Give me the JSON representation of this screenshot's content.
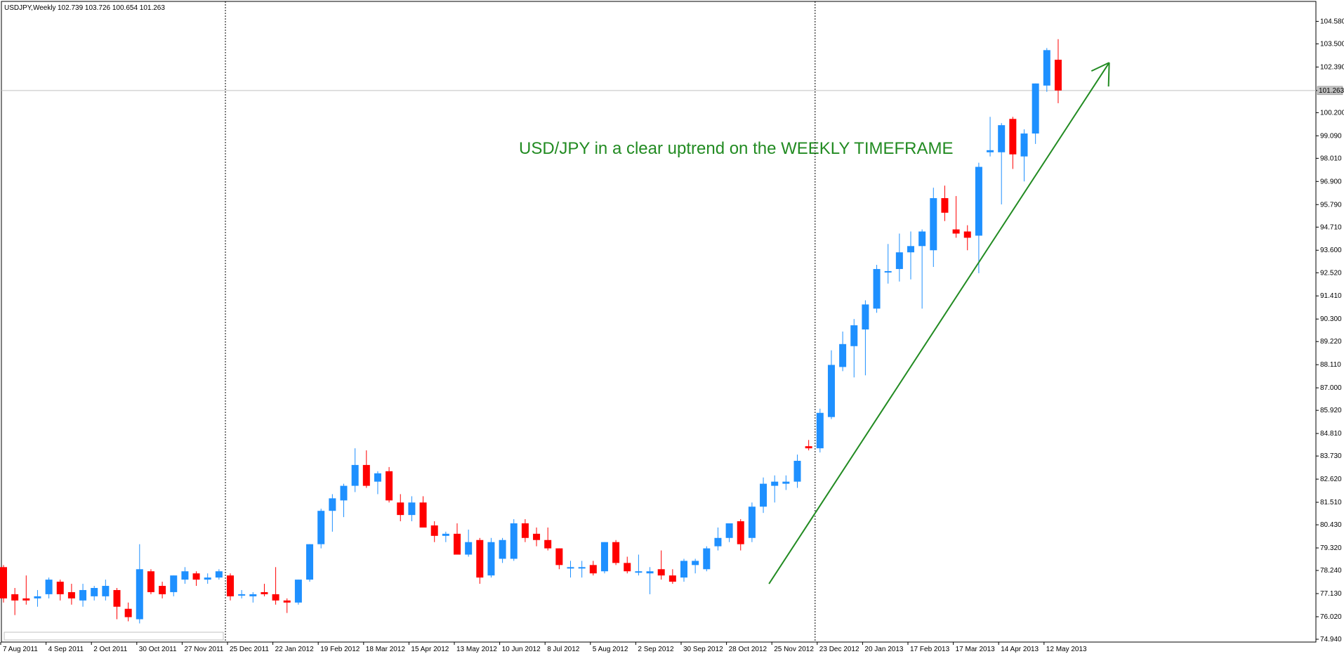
{
  "header": {
    "symbol": "USDJPY,Weekly",
    "ohlc": "102.739 103.726 100.654 101.263"
  },
  "annotation": "USD/JPY in a clear uptrend on the WEEKLY TIMEFRAME",
  "current_price_label": "101.263",
  "colors": {
    "bull": "#1e90ff",
    "bear": "#ff0000",
    "trendline": "#228b22",
    "annotation": "#228b22",
    "axis": "#000000",
    "price_line": "#c0c0c0"
  },
  "chart_data": {
    "type": "candlestick",
    "title": "",
    "xlabel": "",
    "ylabel": "",
    "ylim": [
      74.94,
      105.2
    ],
    "y_ticks": [
      "104.580",
      "103.500",
      "102.390",
      "101.263",
      "100.200",
      "99.090",
      "98.010",
      "96.900",
      "95.790",
      "94.710",
      "93.600",
      "92.520",
      "91.410",
      "90.300",
      "89.220",
      "88.110",
      "87.000",
      "85.920",
      "84.810",
      "83.730",
      "82.620",
      "81.510",
      "80.430",
      "79.320",
      "78.240",
      "77.130",
      "76.020",
      "74.940"
    ],
    "x_ticks": [
      {
        "label": "7 Aug 2011",
        "index": 0
      },
      {
        "label": "4 Sep 2011",
        "index": 4
      },
      {
        "label": "2 Oct 2011",
        "index": 8
      },
      {
        "label": "30 Oct 2011",
        "index": 12
      },
      {
        "label": "27 Nov 2011",
        "index": 16
      },
      {
        "label": "25 Dec 2011",
        "index": 20
      },
      {
        "label": "22 Jan 2012",
        "index": 24
      },
      {
        "label": "19 Feb 2012",
        "index": 28
      },
      {
        "label": "18 Mar 2012",
        "index": 32
      },
      {
        "label": "15 Apr 2012",
        "index": 36
      },
      {
        "label": "13 May 2012",
        "index": 40
      },
      {
        "label": "10 Jun 2012",
        "index": 44
      },
      {
        "label": "8 Jul 2012",
        "index": 48
      },
      {
        "label": "5 Aug 2012",
        "index": 52
      },
      {
        "label": "2 Sep 2012",
        "index": 56
      },
      {
        "label": "30 Sep 2012",
        "index": 60
      },
      {
        "label": "28 Oct 2012",
        "index": 64
      },
      {
        "label": "25 Nov 2012",
        "index": 68
      },
      {
        "label": "23 Dec 2012",
        "index": 72
      },
      {
        "label": "20 Jan 2013",
        "index": 76
      },
      {
        "label": "17 Feb 2013",
        "index": 80
      },
      {
        "label": "17 Mar 2013",
        "index": 84
      },
      {
        "label": "14 Apr 2013",
        "index": 88
      },
      {
        "label": "12 May 2013",
        "index": 92
      }
    ],
    "candles": [
      {
        "o": 78.4,
        "h": 78.5,
        "l": 76.7,
        "c": 76.9
      },
      {
        "o": 77.1,
        "h": 77.4,
        "l": 76.1,
        "c": 76.8
      },
      {
        "o": 76.9,
        "h": 78.0,
        "l": 76.6,
        "c": 76.8
      },
      {
        "o": 76.9,
        "h": 77.3,
        "l": 76.5,
        "c": 77.0
      },
      {
        "o": 77.1,
        "h": 77.9,
        "l": 76.9,
        "c": 77.8
      },
      {
        "o": 77.7,
        "h": 77.8,
        "l": 76.8,
        "c": 77.1
      },
      {
        "o": 77.2,
        "h": 77.6,
        "l": 76.6,
        "c": 76.9
      },
      {
        "o": 76.8,
        "h": 77.6,
        "l": 76.5,
        "c": 77.3
      },
      {
        "o": 77.0,
        "h": 77.5,
        "l": 76.8,
        "c": 77.4
      },
      {
        "o": 77.0,
        "h": 77.8,
        "l": 76.8,
        "c": 77.5
      },
      {
        "o": 77.3,
        "h": 77.4,
        "l": 75.9,
        "c": 76.5
      },
      {
        "o": 76.4,
        "h": 76.7,
        "l": 75.8,
        "c": 76.0
      },
      {
        "o": 75.9,
        "h": 79.5,
        "l": 75.7,
        "c": 78.3
      },
      {
        "o": 78.2,
        "h": 78.3,
        "l": 77.1,
        "c": 77.2
      },
      {
        "o": 77.5,
        "h": 77.7,
        "l": 76.9,
        "c": 77.1
      },
      {
        "o": 77.2,
        "h": 78.0,
        "l": 77.0,
        "c": 78.0
      },
      {
        "o": 77.8,
        "h": 78.4,
        "l": 77.6,
        "c": 78.2
      },
      {
        "o": 78.1,
        "h": 78.2,
        "l": 77.5,
        "c": 77.8
      },
      {
        "o": 77.8,
        "h": 78.1,
        "l": 77.6,
        "c": 77.9
      },
      {
        "o": 77.9,
        "h": 78.3,
        "l": 77.8,
        "c": 78.2
      },
      {
        "o": 78.0,
        "h": 78.1,
        "l": 76.8,
        "c": 77.0
      },
      {
        "o": 77.1,
        "h": 77.3,
        "l": 76.9,
        "c": 77.1
      },
      {
        "o": 77.0,
        "h": 77.2,
        "l": 76.7,
        "c": 77.1
      },
      {
        "o": 77.2,
        "h": 77.6,
        "l": 77.0,
        "c": 77.1
      },
      {
        "o": 77.1,
        "h": 78.4,
        "l": 76.6,
        "c": 76.8
      },
      {
        "o": 76.8,
        "h": 76.9,
        "l": 76.2,
        "c": 76.7
      },
      {
        "o": 76.7,
        "h": 77.8,
        "l": 76.6,
        "c": 77.8
      },
      {
        "o": 77.8,
        "h": 79.5,
        "l": 77.7,
        "c": 79.5
      },
      {
        "o": 79.5,
        "h": 81.2,
        "l": 79.3,
        "c": 81.1
      },
      {
        "o": 81.1,
        "h": 81.9,
        "l": 80.1,
        "c": 81.7
      },
      {
        "o": 81.6,
        "h": 82.4,
        "l": 80.8,
        "c": 82.3
      },
      {
        "o": 82.3,
        "h": 84.1,
        "l": 82.0,
        "c": 83.3
      },
      {
        "o": 83.3,
        "h": 84.0,
        "l": 82.2,
        "c": 82.3
      },
      {
        "o": 82.5,
        "h": 83.0,
        "l": 81.9,
        "c": 82.9
      },
      {
        "o": 83.0,
        "h": 83.2,
        "l": 81.5,
        "c": 81.6
      },
      {
        "o": 81.5,
        "h": 81.9,
        "l": 80.6,
        "c": 80.9
      },
      {
        "o": 80.9,
        "h": 81.8,
        "l": 80.6,
        "c": 81.5
      },
      {
        "o": 81.5,
        "h": 81.8,
        "l": 80.4,
        "c": 80.3
      },
      {
        "o": 80.4,
        "h": 80.6,
        "l": 79.6,
        "c": 79.9
      },
      {
        "o": 79.9,
        "h": 80.1,
        "l": 79.6,
        "c": 80.0
      },
      {
        "o": 80.0,
        "h": 80.5,
        "l": 79.0,
        "c": 79.0
      },
      {
        "o": 79.0,
        "h": 80.2,
        "l": 78.9,
        "c": 79.6
      },
      {
        "o": 79.7,
        "h": 79.8,
        "l": 77.6,
        "c": 77.9
      },
      {
        "o": 78.0,
        "h": 79.8,
        "l": 77.9,
        "c": 79.6
      },
      {
        "o": 78.8,
        "h": 79.8,
        "l": 78.6,
        "c": 79.7
      },
      {
        "o": 78.8,
        "h": 80.7,
        "l": 78.7,
        "c": 80.5
      },
      {
        "o": 80.5,
        "h": 80.7,
        "l": 79.6,
        "c": 79.8
      },
      {
        "o": 80.0,
        "h": 80.3,
        "l": 79.4,
        "c": 79.7
      },
      {
        "o": 79.7,
        "h": 80.3,
        "l": 79.2,
        "c": 79.3
      },
      {
        "o": 79.3,
        "h": 79.3,
        "l": 78.3,
        "c": 78.5
      },
      {
        "o": 78.4,
        "h": 78.7,
        "l": 77.9,
        "c": 78.4
      },
      {
        "o": 78.4,
        "h": 78.7,
        "l": 77.9,
        "c": 78.4
      },
      {
        "o": 78.5,
        "h": 78.7,
        "l": 78.0,
        "c": 78.1
      },
      {
        "o": 78.2,
        "h": 79.6,
        "l": 78.1,
        "c": 79.6
      },
      {
        "o": 79.6,
        "h": 79.7,
        "l": 78.5,
        "c": 78.6
      },
      {
        "o": 78.6,
        "h": 78.9,
        "l": 78.1,
        "c": 78.2
      },
      {
        "o": 78.2,
        "h": 79.0,
        "l": 78.0,
        "c": 78.2
      },
      {
        "o": 78.1,
        "h": 78.4,
        "l": 77.1,
        "c": 78.2
      },
      {
        "o": 78.3,
        "h": 79.2,
        "l": 77.8,
        "c": 78.0
      },
      {
        "o": 78.0,
        "h": 78.3,
        "l": 77.6,
        "c": 77.7
      },
      {
        "o": 77.9,
        "h": 78.8,
        "l": 77.7,
        "c": 78.7
      },
      {
        "o": 78.5,
        "h": 78.8,
        "l": 78.1,
        "c": 78.7
      },
      {
        "o": 78.3,
        "h": 79.4,
        "l": 78.2,
        "c": 79.3
      },
      {
        "o": 79.4,
        "h": 80.3,
        "l": 79.2,
        "c": 79.8
      },
      {
        "o": 79.8,
        "h": 80.5,
        "l": 79.6,
        "c": 80.5
      },
      {
        "o": 80.6,
        "h": 80.7,
        "l": 79.2,
        "c": 79.5
      },
      {
        "o": 79.8,
        "h": 81.5,
        "l": 79.6,
        "c": 81.3
      },
      {
        "o": 81.3,
        "h": 82.7,
        "l": 81.0,
        "c": 82.4
      },
      {
        "o": 82.3,
        "h": 82.8,
        "l": 81.5,
        "c": 82.5
      },
      {
        "o": 82.4,
        "h": 82.8,
        "l": 82.1,
        "c": 82.5
      },
      {
        "o": 82.5,
        "h": 83.8,
        "l": 82.2,
        "c": 83.5
      },
      {
        "o": 84.2,
        "h": 84.5,
        "l": 84.0,
        "c": 84.1
      },
      {
        "o": 84.1,
        "h": 86.0,
        "l": 83.9,
        "c": 85.8
      },
      {
        "o": 85.6,
        "h": 88.8,
        "l": 85.5,
        "c": 88.1
      },
      {
        "o": 88.0,
        "h": 89.7,
        "l": 87.8,
        "c": 89.1
      },
      {
        "o": 89.0,
        "h": 90.3,
        "l": 87.5,
        "c": 90.0
      },
      {
        "o": 89.8,
        "h": 91.2,
        "l": 87.6,
        "c": 91.0
      },
      {
        "o": 90.8,
        "h": 92.9,
        "l": 90.6,
        "c": 92.7
      },
      {
        "o": 92.6,
        "h": 93.9,
        "l": 92.0,
        "c": 92.6
      },
      {
        "o": 92.7,
        "h": 94.4,
        "l": 92.1,
        "c": 93.5
      },
      {
        "o": 93.5,
        "h": 94.5,
        "l": 92.2,
        "c": 93.8
      },
      {
        "o": 93.8,
        "h": 94.6,
        "l": 90.8,
        "c": 94.5
      },
      {
        "o": 93.6,
        "h": 96.6,
        "l": 92.8,
        "c": 96.1
      },
      {
        "o": 96.1,
        "h": 96.7,
        "l": 95.0,
        "c": 95.4
      },
      {
        "o": 94.6,
        "h": 96.2,
        "l": 94.2,
        "c": 94.4
      },
      {
        "o": 94.5,
        "h": 94.8,
        "l": 93.6,
        "c": 94.2
      },
      {
        "o": 94.3,
        "h": 97.8,
        "l": 92.5,
        "c": 97.6
      },
      {
        "o": 98.3,
        "h": 100.0,
        "l": 98.1,
        "c": 98.4
      },
      {
        "o": 98.3,
        "h": 99.7,
        "l": 95.8,
        "c": 99.6
      },
      {
        "o": 99.9,
        "h": 100.0,
        "l": 97.5,
        "c": 98.2
      },
      {
        "o": 98.1,
        "h": 99.4,
        "l": 96.9,
        "c": 99.2
      },
      {
        "o": 99.2,
        "h": 101.6,
        "l": 98.7,
        "c": 101.6
      },
      {
        "o": 101.5,
        "h": 103.3,
        "l": 101.2,
        "c": 103.2
      },
      {
        "o": 102.739,
        "h": 103.726,
        "l": 100.654,
        "c": 101.263
      }
    ],
    "vertical_markers": [
      20,
      72
    ],
    "trendline": {
      "from": {
        "index": 67.5,
        "price": 77.6
      },
      "to": {
        "index": 97.5,
        "price": 102.6
      }
    }
  }
}
